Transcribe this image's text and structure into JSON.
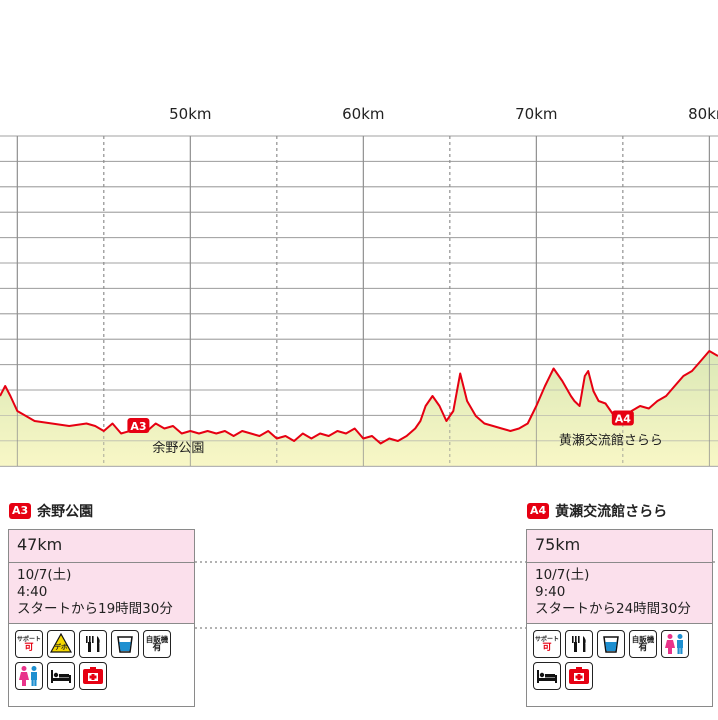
{
  "chart_data": {
    "type": "area",
    "xlabel": "",
    "ylabel": "",
    "xlim": [
      39,
      80.5
    ],
    "x_ticks": [
      {
        "value": 50,
        "label": "50km"
      },
      {
        "value": 60,
        "label": "60km"
      },
      {
        "value": 70,
        "label": "70km"
      },
      {
        "value": 80,
        "label": "80km"
      }
    ],
    "grid": true,
    "line_color": "#e60012",
    "fill_color": "#e3ecc2",
    "fill_color_bottom": "#f7f6c4",
    "series": [
      {
        "x": [
          39,
          39.3,
          39.6,
          40,
          41,
          42,
          43,
          44,
          44.5,
          45,
          45.5,
          46,
          46.5,
          47,
          47.5,
          48,
          48.5,
          49,
          49.5,
          50,
          50.5,
          51,
          51.5,
          52,
          52.5,
          53,
          53.5,
          54,
          54.5,
          55,
          55.5,
          56,
          56.5,
          57,
          57.5,
          58,
          58.5,
          59,
          59.5,
          60,
          60.5,
          61,
          61.5,
          62,
          62.5,
          63,
          63.3,
          63.6,
          64,
          64.4,
          64.8,
          65.2,
          65.6,
          66,
          66.5,
          67,
          67.5,
          68,
          68.5,
          69,
          69.5,
          70,
          70.5,
          71,
          71.5,
          72,
          72.2,
          72.5,
          72.8,
          73,
          73.3,
          73.6,
          74,
          74.5,
          75,
          75.5,
          76,
          76.5,
          77,
          77.5,
          78,
          78.5,
          79,
          79.5,
          80,
          80.5
        ],
        "y": [
          14,
          16,
          14,
          11,
          9,
          8.5,
          8,
          8.5,
          8,
          7,
          8.5,
          6.5,
          7,
          8,
          7,
          8.5,
          7.5,
          8,
          6.5,
          7,
          6.5,
          7,
          6.5,
          7,
          6,
          7,
          6.5,
          6,
          7,
          5.5,
          6,
          5,
          6.5,
          5.5,
          6.5,
          6,
          7,
          6.5,
          7.5,
          5.5,
          6,
          4.5,
          5.5,
          5,
          6,
          7.5,
          9,
          12,
          14,
          12,
          9,
          11,
          18.5,
          13,
          10,
          8.5,
          8,
          7.5,
          7,
          7.5,
          8.5,
          12,
          16,
          19.5,
          17,
          14,
          13,
          12,
          18,
          19,
          15,
          13,
          12.5,
          10,
          9.5,
          11,
          12,
          11.5,
          13,
          14,
          16,
          18,
          19,
          21,
          23,
          22
        ]
      }
    ],
    "aid_markers": [
      {
        "x": 47,
        "code": "A3",
        "name": "余野公園"
      },
      {
        "x": 75,
        "code": "A4",
        "name": "黄瀬交流館さらら"
      }
    ]
  },
  "stations": [
    {
      "code": "A3",
      "name": "余野公園",
      "distance": "47km",
      "date": "10/7(土)",
      "time": "4:40",
      "elapsed": "スタートから19時間30分",
      "icons": [
        {
          "icon": "support-icon",
          "top": "サポート",
          "bottom": "可"
        },
        {
          "icon": "depot-icon",
          "label": "デポ"
        },
        {
          "icon": "food-icon"
        },
        {
          "icon": "water-icon"
        },
        {
          "icon": "vending-icon",
          "top": "自販機",
          "bottom": "有"
        },
        {
          "icon": "toilet-icon"
        },
        {
          "icon": "rest-icon"
        },
        {
          "icon": "first-aid-icon"
        }
      ]
    },
    {
      "code": "A4",
      "name": "黄瀬交流館さらら",
      "distance": "75km",
      "date": "10/7(土)",
      "time": "9:40",
      "elapsed": "スタートから24時間30分",
      "icons": [
        {
          "icon": "support-icon",
          "top": "サポート",
          "bottom": "可"
        },
        {
          "icon": "food-icon"
        },
        {
          "icon": "water-icon"
        },
        {
          "icon": "vending-icon",
          "top": "自販機",
          "bottom": "有"
        },
        {
          "icon": "toilet-icon"
        },
        {
          "icon": "rest-icon"
        },
        {
          "icon": "first-aid-icon"
        }
      ]
    }
  ]
}
